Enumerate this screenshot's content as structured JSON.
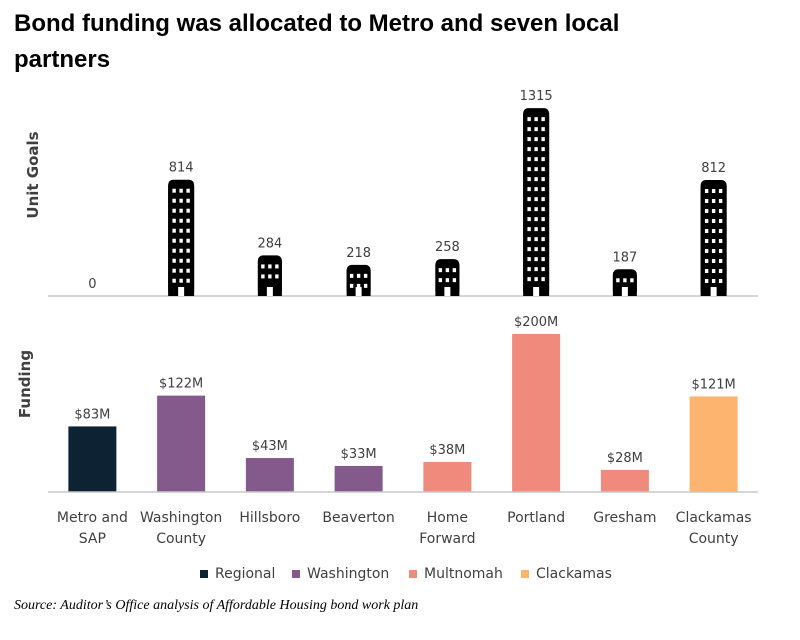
{
  "title": "Bond funding was allocated to Metro and seven local partners",
  "source": "Source: Auditor’s Office analysis of Affordable Housing bond work plan",
  "colors": {
    "Regional": "#0d2233",
    "Washington": "#845a8c",
    "Multnomah": "#ef8a7c",
    "Clackamas": "#fdb46e",
    "building": "#000000",
    "text": "#404040"
  },
  "chart_data": [
    {
      "type": "bar",
      "name": "unit-goals",
      "ylabel": "Unit Goals",
      "categories": [
        [
          "Metro and",
          "SAP"
        ],
        [
          "Washington",
          "County"
        ],
        [
          "Hillsboro"
        ],
        [
          "Beaverton"
        ],
        [
          "Home",
          "Forward"
        ],
        [
          "Portland"
        ],
        [
          "Gresham"
        ],
        [
          "Clackamas",
          "County"
        ]
      ],
      "values": [
        0,
        814,
        284,
        218,
        258,
        1315,
        187,
        812
      ],
      "labels": [
        "0",
        "814",
        "284",
        "218",
        "258",
        "1315",
        "187",
        "812"
      ],
      "marker": "building-icon",
      "ylim": [
        0,
        1400
      ],
      "grid": false
    },
    {
      "type": "bar",
      "name": "funding",
      "ylabel": "Funding",
      "unit": "$M",
      "categories": [
        [
          "Metro and",
          "SAP"
        ],
        [
          "Washington",
          "County"
        ],
        [
          "Hillsboro"
        ],
        [
          "Beaverton"
        ],
        [
          "Home",
          "Forward"
        ],
        [
          "Portland"
        ],
        [
          "Gresham"
        ],
        [
          "Clackamas",
          "County"
        ]
      ],
      "values": [
        83,
        122,
        43,
        33,
        38,
        200,
        28,
        121
      ],
      "labels": [
        "$83M",
        "$122M",
        "$43M",
        "$33M",
        "$38M",
        "$200M",
        "$28M",
        "$121M"
      ],
      "groups": [
        "Regional",
        "Washington",
        "Washington",
        "Washington",
        "Multnomah",
        "Multnomah",
        "Multnomah",
        "Clackamas"
      ],
      "ylim": [
        0,
        210
      ],
      "grid": false,
      "legend": {
        "placement": "bottom",
        "entries": [
          "Regional",
          "Washington",
          "Multnomah",
          "Clackamas"
        ]
      }
    }
  ]
}
